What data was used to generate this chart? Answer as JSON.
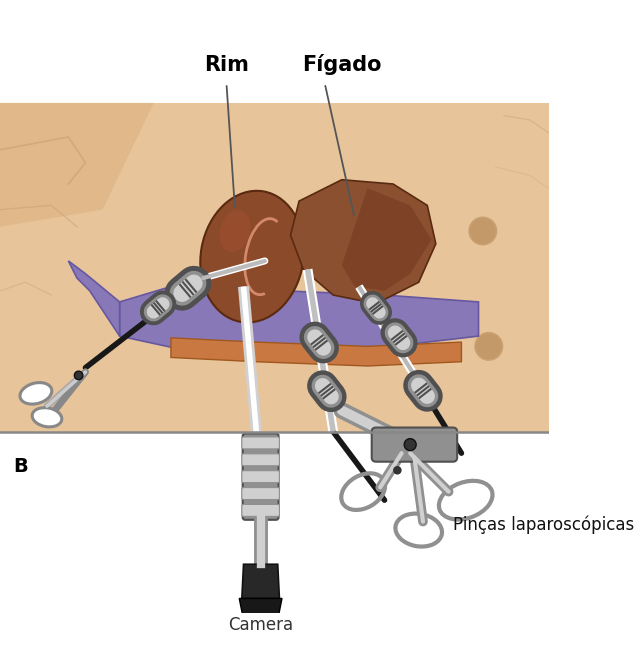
{
  "bg_color": "#ffffff",
  "skin_color": "#e8c49a",
  "skin_shadow": "#c9a070",
  "skin_fold": "#d4b07a",
  "kidney_color": "#8B4A2A",
  "kidney_dark": "#5a2a10",
  "kidney_light": "#a0522d",
  "liver_color": "#8B5030",
  "vessel_purple": "#8878b8",
  "vessel_purple_dark": "#6658a0",
  "vessel_orange": "#c87840",
  "instrument_gray": "#909090",
  "instrument_light": "#d0d0d0",
  "instrument_dark": "#505050",
  "instrument_black": "#181818",
  "label_rim": "Rim",
  "label_figado": "Fígado",
  "label_camera": "Camera",
  "label_pincas": "Pinças laparoscópicas",
  "label_B": "B",
  "line_color": "#555555",
  "fig_width": 6.42,
  "fig_height": 6.72
}
